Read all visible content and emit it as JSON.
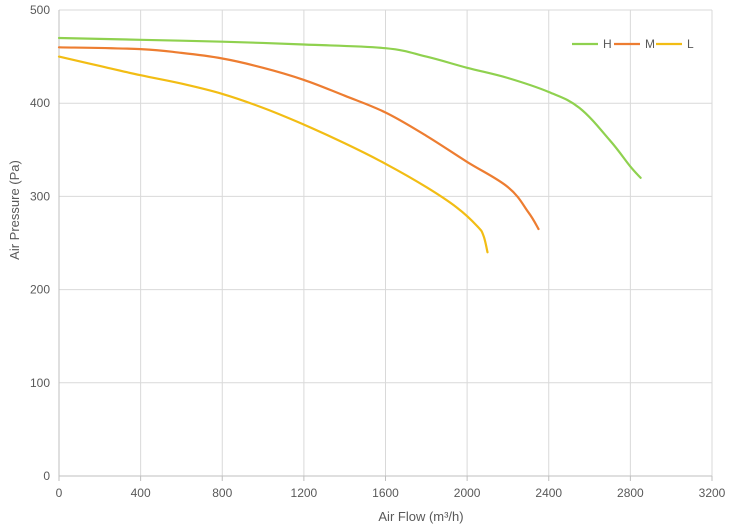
{
  "chart_data": {
    "type": "line",
    "title": "",
    "xlabel": "Air Flow  (m³/h)",
    "ylabel": "Air Pressure  (Pa)",
    "xlim": [
      0,
      3200
    ],
    "ylim": [
      0,
      500
    ],
    "xticks": [
      "0",
      "400",
      "800",
      "1200",
      "1600",
      "2000",
      "2400",
      "2800",
      "3200"
    ],
    "yticks": [
      "0",
      "100",
      "200",
      "300",
      "400",
      "500"
    ],
    "grid": true,
    "legend_position": "top-right",
    "series": [
      {
        "name": "H",
        "color": "#8fd14f",
        "points": [
          [
            0,
            470
          ],
          [
            400,
            468
          ],
          [
            800,
            466
          ],
          [
            1200,
            463
          ],
          [
            1600,
            459
          ],
          [
            1800,
            450
          ],
          [
            2000,
            438
          ],
          [
            2200,
            427
          ],
          [
            2400,
            412
          ],
          [
            2550,
            395
          ],
          [
            2700,
            360
          ],
          [
            2800,
            332
          ],
          [
            2850,
            320
          ]
        ]
      },
      {
        "name": "M",
        "color": "#ed7d31",
        "points": [
          [
            0,
            460
          ],
          [
            400,
            458
          ],
          [
            600,
            454
          ],
          [
            800,
            448
          ],
          [
            1000,
            438
          ],
          [
            1200,
            425
          ],
          [
            1400,
            408
          ],
          [
            1600,
            390
          ],
          [
            1800,
            365
          ],
          [
            2000,
            337
          ],
          [
            2200,
            310
          ],
          [
            2300,
            283
          ],
          [
            2350,
            265
          ]
        ]
      },
      {
        "name": "L",
        "color": "#f2bd14",
        "points": [
          [
            0,
            450
          ],
          [
            200,
            440
          ],
          [
            400,
            430
          ],
          [
            600,
            421
          ],
          [
            800,
            410
          ],
          [
            1000,
            395
          ],
          [
            1200,
            377
          ],
          [
            1400,
            357
          ],
          [
            1600,
            335
          ],
          [
            1800,
            310
          ],
          [
            1950,
            288
          ],
          [
            2050,
            268
          ],
          [
            2080,
            258
          ],
          [
            2100,
            240
          ]
        ]
      }
    ]
  }
}
